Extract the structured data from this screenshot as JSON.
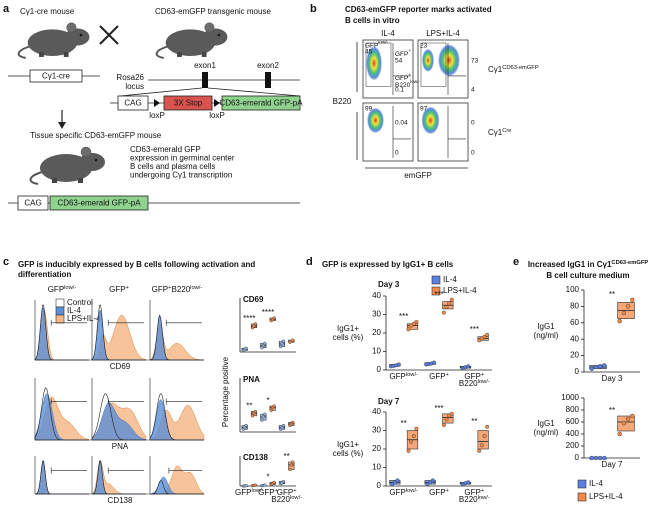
{
  "a": {
    "letter": "a",
    "mouse1": "Cγ1-cre mouse",
    "mouse2": "CD63-emGFP transgenic mouse",
    "cre_box": "Cγ1-cre",
    "exon1": "exon1",
    "exon2": "exon2",
    "locus": [
      [
        "Rosa26"
      ],
      [
        "locus"
      ]
    ],
    "cag": "CAG",
    "stop": "3X Stop",
    "gfp": "CD63-emerald GFP-pA",
    "loxp": [
      "loxP",
      "loxP"
    ],
    "mouse3": "Tissue specific CD63-emGFP mouse",
    "note": [
      [
        "CD63-emerald GFP"
      ],
      [
        "expression in germinal center"
      ],
      [
        "B cells and plasma cells"
      ],
      [
        "undergoing Cγ1 transcription"
      ]
    ],
    "cag2": "CAG",
    "gfp2": "CD63-emerald GFP-pA"
  },
  "b": {
    "letter": "b",
    "title": [
      [
        "CD63-emGFP reporter marks activated"
      ],
      [
        "B cells in vitro"
      ]
    ],
    "cols": [
      "IL-4",
      "LPS+IL-4"
    ],
    "rows": [
      [
        "Cγ1",
        {
          "sup": "CD63-emGFP"
        }
      ],
      [
        "Cγ1",
        {
          "sup": "Cre"
        }
      ]
    ],
    "gates": [
      [
        "GFP",
        {
          "sup": "low/-"
        }
      ],
      [
        "GFP",
        {
          "sup": "+"
        }
      ],
      [
        [
          "GFP",
          {
            "sup": "+"
          }
        ],
        [
          "B220",
          {
            "sup": "low/-"
          }
        ]
      ]
    ],
    "numbers": [
      [
        45,
        54,
        0.1
      ],
      [
        23,
        73,
        4
      ],
      [
        99,
        0.04,
        0
      ],
      [
        97,
        0,
        0
      ]
    ],
    "ylabel": "B220",
    "xlabel": "emGFP"
  },
  "c": {
    "letter": "c",
    "title": [
      [
        "GFP is inducibly expressed by B cells following activation and"
      ],
      [
        "differentiation"
      ]
    ],
    "cols": [
      [
        "GFP",
        {
          "sup": "low/-"
        }
      ],
      [
        "GFP",
        {
          "sup": "+"
        }
      ],
      [
        "GFP",
        {
          "sup": "+"
        },
        "B220",
        {
          "sup": "low/-"
        }
      ]
    ],
    "legend": [
      {
        "name": "Control",
        "color": "#ffffff"
      },
      {
        "name": "IL-4",
        "color": "#5b8fd6"
      },
      {
        "name": "LPS+IL-4",
        "color": "#f5b98a"
      }
    ],
    "markers": [
      "CD69",
      "PNA",
      "CD138"
    ],
    "ylabel": "Percentage positive",
    "categories": [
      [
        [
          "GFP",
          {
            "sup": "low/-"
          }
        ]
      ],
      [
        [
          "GFP",
          {
            "sup": "+"
          }
        ]
      ],
      [
        [
          "GFP",
          {
            "sup": "+"
          }
        ],
        [
          "B220",
          {
            "sup": "low/-"
          }
        ]
      ]
    ],
    "plots": [
      {
        "title": "CD69",
        "ylim": [
          0,
          100
        ],
        "annotations": [
          "****",
          "****",
          null
        ],
        "series": [
          {
            "color": "#8fb2ea",
            "groups": [
              {
                "box": [
                  3,
                  5,
                  7
                ],
                "points": [
                  3,
                  5,
                  7
                ]
              },
              {
                "box": [
                  8,
                  12,
                  16
                ],
                "points": [
                  8,
                  12,
                  16
                ]
              },
              {
                "box": [
                  10,
                  15,
                  20
                ],
                "points": [
                  10,
                  15,
                  20
                ]
              }
            ]
          },
          {
            "color": "#f08a4b",
            "groups": [
              {
                "box": [
                  45,
                  48,
                  52
                ],
                "points": [
                  45,
                  48,
                  52
                ]
              },
              {
                "box": [
                  58,
                  60,
                  63
                ],
                "points": [
                  58,
                  60,
                  63
                ]
              },
              {
                "box": [
                  18,
                  20,
                  22
                ],
                "points": [
                  18,
                  20,
                  22
                ]
              }
            ]
          }
        ]
      },
      {
        "title": "PNA",
        "ylim": [
          0,
          100
        ],
        "annotations": [
          "**",
          "*",
          null
        ],
        "series": [
          {
            "color": "#8fb2ea",
            "groups": [
              {
                "box": [
                  5,
                  8,
                  12
                ],
                "points": [
                  5,
                  8,
                  12
                ]
              },
              {
                "box": [
                  22,
                  28,
                  33
                ],
                "points": [
                  22,
                  28,
                  33
                ]
              },
              {
                "box": [
                  5,
                  8,
                  12
                ],
                "points": [
                  5,
                  8,
                  12
                ]
              }
            ]
          },
          {
            "color": "#f08a4b",
            "groups": [
              {
                "box": [
                  30,
                  35,
                  38
                ],
                "points": [
                  30,
                  35,
                  38
                ]
              },
              {
                "box": [
                  40,
                  45,
                  48
                ],
                "points": [
                  40,
                  45,
                  48
                ]
              },
              {
                "box": [
                  12,
                  15,
                  18
                ],
                "points": [
                  12,
                  15,
                  18
                ]
              }
            ]
          }
        ]
      },
      {
        "title": "CD138",
        "ylim": [
          0,
          100
        ],
        "annotations": [
          null,
          "*",
          "**"
        ],
        "series": [
          {
            "color": "#8fb2ea",
            "groups": [
              {
                "box": [
                  0,
                  0.5,
                  1
                ],
                "points": [
                  0,
                  0.5,
                  1
                ]
              },
              {
                "box": [
                  1,
                  2,
                  3
                ],
                "points": [
                  1,
                  2,
                  3
                ]
              },
              {
                "box": [
                  8,
                  10,
                  15
                ],
                "points": [
                  8,
                  10,
                  15
                ]
              }
            ]
          },
          {
            "color": "#f08a4b",
            "groups": [
              {
                "box": [
                  1,
                  2,
                  3
                ],
                "points": [
                  1,
                  2,
                  3
                ]
              },
              {
                "box": [
                  5,
                  8,
                  12
                ],
                "points": [
                  5,
                  8,
                  12
                ]
              },
              {
                "box": [
                  55,
                  70,
                  80
                ],
                "points": [
                  55,
                  70,
                  80
                ]
              }
            ]
          }
        ]
      }
    ]
  },
  "d": {
    "letter": "d",
    "title": "GFP is expressed by IgG1+ B cells",
    "legend": [
      {
        "name": "IL-4",
        "color": "#5b7fe0"
      },
      {
        "name": "LPS+IL-4",
        "color": "#f08a4b"
      }
    ],
    "categories": [
      [
        [
          "GFP",
          {
            "sup": "low/-"
          }
        ]
      ],
      [
        [
          "GFP",
          {
            "sup": "+"
          }
        ]
      ],
      [
        [
          "GFP",
          {
            "sup": "+"
          }
        ],
        [
          "B220",
          {
            "sup": "low/-"
          }
        ]
      ]
    ],
    "plots": [
      {
        "title": "Day 3",
        "ylabel": [
          [
            "IgG1+"
          ],
          [
            "cells (%)"
          ]
        ],
        "ylim": [
          0,
          40
        ],
        "yticks": [
          0,
          10,
          20,
          30,
          40
        ],
        "annotations": [
          "***",
          "***",
          "***"
        ],
        "series": [
          {
            "color": "#5b7fe0",
            "groups": [
              {
                "box": [
                  2,
                  2.5,
                  3
                ],
                "points": [
                  2,
                  2.2,
                  2.5,
                  3
                ]
              },
              {
                "box": [
                  3,
                  3.5,
                  4
                ],
                "points": [
                  3,
                  3.2,
                  3.5,
                  4
                ]
              },
              {
                "box": [
                  1,
                  1.5,
                  2
                ],
                "points": [
                  1,
                  1.5,
                  2
                ]
              }
            ]
          },
          {
            "color": "#f08a4b",
            "groups": [
              {
                "box": [
                  22,
                  24,
                  25
                ],
                "points": [
                  22,
                  24,
                  25,
                  26
                ]
              },
              {
                "box": [
                  33,
                  35,
                  37
                ],
                "points": [
                  31,
                  34,
                  36,
                  38
                ]
              },
              {
                "box": [
                  16,
                  17,
                  18
                ],
                "points": [
                  16,
                  17,
                  18,
                  19
                ]
              }
            ]
          }
        ]
      },
      {
        "title": "Day 7",
        "ylabel": [
          [
            "IgG1+"
          ],
          [
            "cells (%)"
          ]
        ],
        "ylim": [
          0,
          40
        ],
        "yticks": [
          0,
          10,
          20,
          30,
          40
        ],
        "annotations": [
          "**",
          "***",
          "**"
        ],
        "series": [
          {
            "color": "#5b7fe0",
            "groups": [
              {
                "box": [
                  1,
                  2,
                  3
                ],
                "points": [
                  1,
                  2,
                  3
                ]
              },
              {
                "box": [
                  1,
                  2,
                  3
                ],
                "points": [
                  1,
                  2,
                  3
                ]
              },
              {
                "box": [
                  1,
                  1.5,
                  2
                ],
                "points": [
                  1,
                  1.5,
                  2
                ]
              }
            ]
          },
          {
            "color": "#f08a4b",
            "groups": [
              {
                "box": [
                  20,
                  25,
                  30
                ],
                "points": [
                  19,
                  24,
                  27,
                  31
                ]
              },
              {
                "box": [
                  34,
                  37,
                  39
                ],
                "points": [
                  33,
                  36,
                  38,
                  39
                ]
              },
              {
                "box": [
                  20,
                  24,
                  30
                ],
                "points": [
                  19,
                  22,
                  27,
                  32
                ]
              }
            ]
          }
        ]
      }
    ]
  },
  "e": {
    "letter": "e",
    "title": [
      [
        "Increased IgG1 in Cγ1",
        {
          "sup": "CD63-emGFP"
        }
      ],
      [
        "B cell culture medium"
      ]
    ],
    "legend": [
      {
        "name": "IL-4",
        "color": "#5b7fe0"
      },
      {
        "name": "LPS+IL-4",
        "color": "#f08a4b"
      }
    ],
    "plots": [
      {
        "categories": [
          "Day 3"
        ],
        "ylabel": [
          [
            "IgG1"
          ],
          [
            "(ng/ml)"
          ]
        ],
        "ylim": [
          0,
          100
        ],
        "yticks": [
          0,
          20,
          40,
          60,
          80,
          100
        ],
        "annotations": [
          "**"
        ],
        "series": [
          {
            "color": "#5b7fe0",
            "groups": [
              {
                "box": [
                  4,
                  6,
                  8
                ],
                "points": [
                  4,
                  6,
                  7,
                  8
                ]
              }
            ]
          },
          {
            "color": "#f08a4b",
            "groups": [
              {
                "box": [
                  65,
                  75,
                  85
                ],
                "points": [
                  62,
                  72,
                  80,
                  88
                ]
              }
            ]
          }
        ]
      },
      {
        "categories": [
          "Day 7"
        ],
        "ylabel": [
          [
            "IgG1"
          ],
          [
            "(ng/ml)"
          ]
        ],
        "ylim": [
          0,
          1000
        ],
        "yticks": [
          0,
          200,
          400,
          600,
          800,
          1000
        ],
        "annotations": [
          "**"
        ],
        "series": [
          {
            "color": "#5b7fe0",
            "groups": [
              {
                "box": [
                  0,
                  0,
                  0
                ],
                "points": [
                  0,
                  0,
                  0,
                  0
                ]
              }
            ]
          },
          {
            "color": "#f08a4b",
            "groups": [
              {
                "box": [
                  450,
                  600,
                  700
                ],
                "points": [
                  400,
                  580,
                  650,
                  700
                ]
              }
            ]
          }
        ]
      }
    ]
  }
}
